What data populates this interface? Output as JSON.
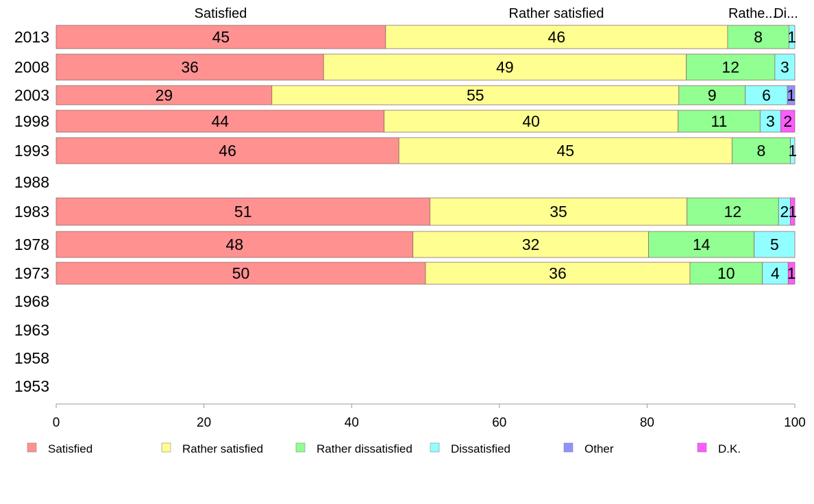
{
  "chart_data": {
    "type": "bar",
    "orientation": "horizontal",
    "stacked": true,
    "categories": [
      "2013",
      "2008",
      "2003",
      "1998",
      "1993",
      "1988",
      "1983",
      "1978",
      "1973",
      "1968",
      "1963",
      "1958",
      "1953"
    ],
    "series": [
      {
        "name": "Satisfied",
        "color": "#ff9191",
        "values": [
          44.6,
          36.2,
          29.2,
          44.4,
          46.4,
          null,
          50.6,
          48.3,
          50.0,
          null,
          null,
          null,
          null
        ]
      },
      {
        "name": "Rather satisfied",
        "color": "#ffff91",
        "values": [
          46.3,
          49.1,
          55.1,
          39.8,
          45.1,
          null,
          34.8,
          31.9,
          35.8,
          null,
          null,
          null,
          null
        ]
      },
      {
        "name": "Rather dissatisfied",
        "color": "#91ff91",
        "values": [
          8.3,
          12.0,
          9.0,
          11.1,
          7.9,
          null,
          12.4,
          14.3,
          9.8,
          null,
          null,
          null,
          null
        ]
      },
      {
        "name": "Dissatisfied",
        "color": "#91ffff",
        "values": [
          0.8,
          2.7,
          5.7,
          2.8,
          0.6,
          null,
          1.6,
          5.5,
          3.5,
          null,
          null,
          null,
          null
        ]
      },
      {
        "name": "Other",
        "color": "#9191ff",
        "values": [
          0,
          0,
          1.0,
          0,
          0,
          null,
          0,
          0,
          0,
          null,
          null,
          null,
          null
        ]
      },
      {
        "name": "D.K.",
        "color": "#ff5bff",
        "values": [
          0,
          0,
          0,
          1.9,
          0,
          null,
          0.6,
          0,
          0.9,
          null,
          null,
          null,
          null
        ]
      }
    ],
    "data_labels": [
      [
        "45",
        "46",
        "8",
        "1",
        "",
        ""
      ],
      [
        "36",
        "49",
        "12",
        "3",
        "",
        ""
      ],
      [
        "29",
        "55",
        "9",
        "6",
        "1",
        ""
      ],
      [
        "44",
        "40",
        "11",
        "3",
        "",
        "2"
      ],
      [
        "46",
        "45",
        "8",
        "1",
        "",
        ""
      ],
      [
        "",
        "",
        "",
        "",
        "",
        ""
      ],
      [
        "51",
        "35",
        "12",
        "2",
        "",
        "1"
      ],
      [
        "48",
        "32",
        "14",
        "5",
        "",
        ""
      ],
      [
        "50",
        "36",
        "10",
        "4",
        "",
        "1"
      ],
      [
        "",
        "",
        "",
        "",
        "",
        ""
      ],
      [
        "",
        "",
        "",
        "",
        "",
        ""
      ],
      [
        "",
        "",
        "",
        "",
        "",
        ""
      ],
      [
        "",
        "",
        "",
        "",
        "",
        ""
      ]
    ],
    "top_labels": [
      "Satisfied",
      "Rather satisfied",
      "Rathe...",
      "Di..."
    ],
    "x_ticks": [
      0,
      20,
      40,
      60,
      80,
      100
    ],
    "xlim": [
      0,
      100
    ],
    "xlabel": "",
    "ylabel": "",
    "title": "",
    "legend": {
      "position": "bottom",
      "items": [
        "Satisfied",
        "Rather satisfied",
        "Rather dissatisfied",
        "Dissatisfied",
        "Other",
        "D.K."
      ]
    },
    "grid": false
  }
}
